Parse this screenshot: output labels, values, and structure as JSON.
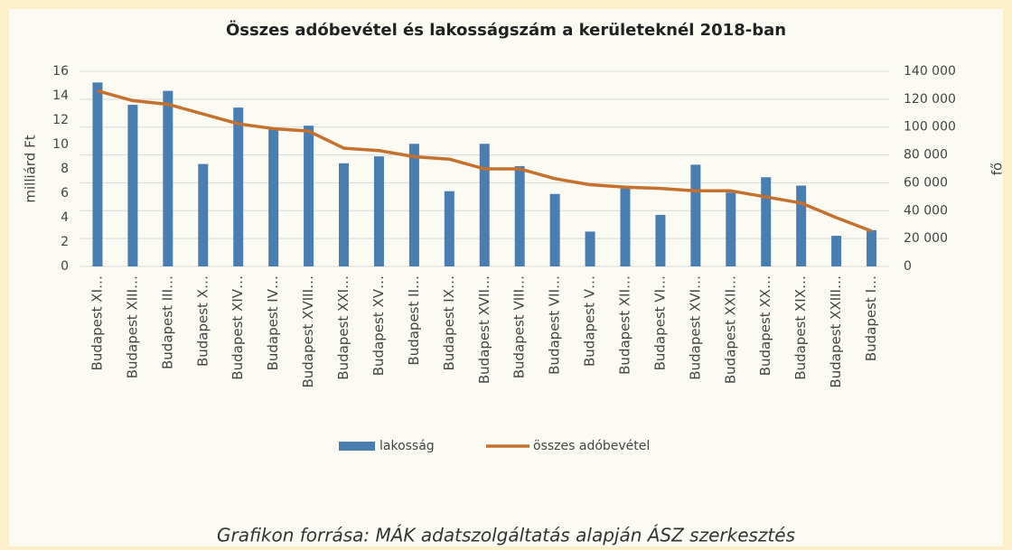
{
  "chart_data": {
    "type": "bar_line",
    "title": "Összes adóbevétel és lakosságszám a kerületeknél 2018-ban",
    "ylabel": "milliárd Ft",
    "y2label": "fő",
    "caption": "Grafikon forrása: MÁK adatszolgáltatás alapján ÁSZ szerkesztés",
    "categories": [
      "Budapest XI…",
      "Budapest XIII…",
      "Budapest III…",
      "Budapest X…",
      "Budapest XIV…",
      "Budapest IV…",
      "Budapest XVIII…",
      "Budapest XXI…",
      "Budapest XV…",
      "Budapest II…",
      "Budapest IX…",
      "Budapest XVII…",
      "Budapest VIII…",
      "Budapest VII…",
      "Budapest V…",
      "Budapest XII…",
      "Budapest VI…",
      "Budapest XVI…",
      "Budapest XXII…",
      "Budapest XX…",
      "Budapest XIX…",
      "Budapest XXIII…",
      "Budapest I…"
    ],
    "series": [
      {
        "name": "lakosság",
        "type": "bar",
        "axis": "y2",
        "color": "#4a7eb0",
        "values": [
          132000,
          116000,
          126000,
          73500,
          114000,
          99000,
          101000,
          74000,
          79000,
          88000,
          54000,
          88000,
          72000,
          52000,
          25000,
          56000,
          37000,
          73000,
          53000,
          64000,
          58000,
          22000,
          26000
        ]
      },
      {
        "name": "összes adóbevétel",
        "type": "line",
        "axis": "y",
        "color": "#c5702c",
        "values": [
          14.4,
          13.6,
          13.3,
          12.5,
          11.7,
          11.3,
          11.1,
          9.7,
          9.5,
          9.0,
          8.8,
          8.0,
          8.0,
          7.2,
          6.7,
          6.5,
          6.4,
          6.2,
          6.2,
          5.7,
          5.2,
          4.0,
          2.9
        ]
      }
    ],
    "ylim": [
      0,
      16
    ],
    "yticks": [
      0,
      2,
      4,
      6,
      8,
      10,
      12,
      14,
      16
    ],
    "y2lim": [
      0,
      140000
    ],
    "y2ticks": [
      0,
      {
        "value": 20000,
        "label": "20 000"
      },
      {
        "value": 40000,
        "label": "40 000"
      },
      {
        "value": 60000,
        "label": "60 000"
      },
      {
        "value": 80000,
        "label": "80 000"
      },
      {
        "value": 100000,
        "label": "100 000"
      },
      {
        "value": 120000,
        "label": "120 000"
      },
      {
        "value": 140000,
        "label": "140 000"
      }
    ],
    "grid": true,
    "legend": "bottom"
  }
}
